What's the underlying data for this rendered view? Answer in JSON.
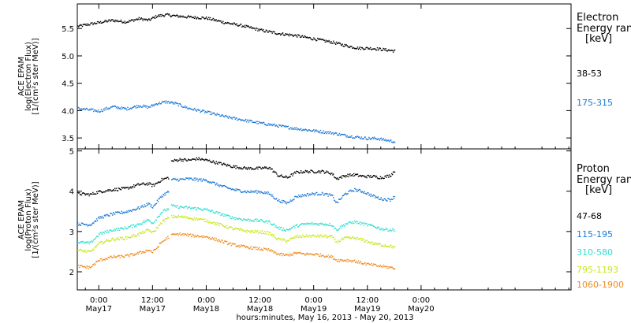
{
  "chart_data": {
    "type": "scatter",
    "x_axis": {
      "label": "hours:minutes, May 16, 2013 - May 20, 2013",
      "range_hours": [
        -4.8,
        105.5
      ],
      "ticks": [
        {
          "h": 0,
          "time": "0:00",
          "date": "May17"
        },
        {
          "h": 12,
          "time": "12:00",
          "date": "May17"
        },
        {
          "h": 24,
          "time": "0:00",
          "date": "May18"
        },
        {
          "h": 36,
          "time": "12:00",
          "date": "May18"
        },
        {
          "h": 48,
          "time": "0:00",
          "date": "May19"
        },
        {
          "h": 60,
          "time": "12:00",
          "date": "May19"
        },
        {
          "h": 72,
          "time": "0:00",
          "date": "May20"
        }
      ]
    },
    "panels": [
      {
        "id": "electron",
        "ylabel_lines": [
          "ACE EPAM",
          "log(Electron Flux)",
          "[1/(cm²s ster MeV)]"
        ],
        "ylim": [
          3.3,
          5.95
        ],
        "yticks": [
          "3.5",
          "4.0",
          "4.5",
          "5.0",
          "5.5"
        ],
        "ytick_values": [
          3.5,
          4.0,
          4.5,
          5.0,
          5.5
        ],
        "legend_title": [
          "Electron",
          "Energy ran",
          "[keV]"
        ],
        "series": [
          {
            "name": "38-53",
            "color": "#000000",
            "x": [
              -4.8,
              0,
              3,
              6,
              9,
              11,
              13,
              15,
              17,
              20,
              24,
              28,
              32,
              36,
              40,
              44,
              48,
              52,
              56,
              58,
              60,
              62,
              64,
              66
            ],
            "y": [
              5.55,
              5.62,
              5.66,
              5.63,
              5.69,
              5.66,
              5.74,
              5.76,
              5.74,
              5.72,
              5.7,
              5.62,
              5.56,
              5.48,
              5.42,
              5.38,
              5.32,
              5.26,
              5.18,
              5.15,
              5.15,
              5.14,
              5.12,
              5.1
            ]
          },
          {
            "name": "175-315",
            "color": "#1a78d6",
            "x": [
              -4.8,
              0,
              3,
              6,
              9,
              11,
              13,
              15,
              17,
              20,
              24,
              28,
              32,
              36,
              40,
              44,
              48,
              52,
              56,
              58,
              60,
              62,
              64,
              66
            ],
            "y": [
              4.05,
              4.0,
              4.08,
              4.04,
              4.1,
              4.07,
              4.14,
              4.17,
              4.14,
              4.05,
              3.98,
              3.9,
              3.84,
              3.78,
              3.73,
              3.68,
              3.64,
              3.6,
              3.54,
              3.52,
              3.5,
              3.5,
              3.47,
              3.44
            ]
          }
        ]
      },
      {
        "id": "proton",
        "ylabel_lines": [
          "ACE EPAM",
          "log(Proton Flux)",
          "[1/(cm²s ster MeV)]"
        ],
        "ylim": [
          1.55,
          5.05
        ],
        "yticks": [
          "2",
          "3",
          "4",
          "5"
        ],
        "ytick_values": [
          2,
          3,
          4,
          5
        ],
        "legend_title": [
          "Proton",
          "Energy ran",
          "[keV]"
        ],
        "series": [
          {
            "name": "47-68",
            "color": "#000000",
            "x": [
              -4.8,
              -2,
              0,
              3,
              6,
              9,
              11,
              12,
              14,
              15.5,
              16,
              18,
              20,
              22,
              24,
              27,
              30,
              33,
              36,
              38,
              40,
              42,
              44,
              46,
              48,
              50,
              52,
              53,
              55,
              57,
              59,
              61,
              63,
              65,
              66
            ],
            "y": [
              3.95,
              3.93,
              4.0,
              4.05,
              4.08,
              4.18,
              4.2,
              4.15,
              4.3,
              4.35,
              4.75,
              4.8,
              4.78,
              4.82,
              4.78,
              4.7,
              4.62,
              4.58,
              4.58,
              4.6,
              4.4,
              4.35,
              4.48,
              4.5,
              4.5,
              4.5,
              4.45,
              4.32,
              4.4,
              4.42,
              4.38,
              4.38,
              4.35,
              4.4,
              4.52
            ]
          },
          {
            "name": "115-195",
            "color": "#1a78d6",
            "x": [
              -4.8,
              -2,
              0,
              3,
              6,
              9,
              11,
              12,
              14,
              15.5,
              16,
              18,
              20,
              22,
              24,
              27,
              30,
              33,
              36,
              38,
              40,
              42,
              44,
              46,
              48,
              50,
              52,
              53,
              55,
              57,
              59,
              61,
              63,
              65,
              66
            ],
            "y": [
              3.2,
              3.18,
              3.35,
              3.45,
              3.5,
              3.6,
              3.7,
              3.62,
              3.9,
              4.0,
              4.3,
              4.3,
              4.32,
              4.3,
              4.28,
              4.15,
              4.05,
              4.0,
              4.0,
              3.95,
              3.78,
              3.72,
              3.88,
              3.92,
              3.95,
              3.95,
              3.9,
              3.72,
              3.95,
              4.05,
              4.0,
              3.9,
              3.82,
              3.8,
              3.88
            ]
          },
          {
            "name": "310-580",
            "color": "#2fe0cf",
            "x": [
              -4.8,
              -2,
              0,
              3,
              6,
              9,
              11,
              12,
              14,
              15.5,
              16,
              18,
              20,
              22,
              24,
              27,
              30,
              33,
              36,
              38,
              40,
              42,
              44,
              46,
              48,
              50,
              52,
              53,
              55,
              57,
              59,
              61,
              63,
              65,
              66
            ],
            "y": [
              2.75,
              2.72,
              2.95,
              3.05,
              3.1,
              3.2,
              3.3,
              3.22,
              3.5,
              3.58,
              3.65,
              3.62,
              3.6,
              3.58,
              3.55,
              3.45,
              3.35,
              3.3,
              3.28,
              3.25,
              3.1,
              3.05,
              3.15,
              3.2,
              3.2,
              3.2,
              3.18,
              3.05,
              3.2,
              3.25,
              3.2,
              3.15,
              3.08,
              3.05,
              3.05
            ]
          },
          {
            "name": "795-1193",
            "color": "#c8e61a",
            "x": [
              -4.8,
              -2,
              0,
              3,
              6,
              9,
              11,
              12,
              14,
              15.5,
              16,
              18,
              20,
              22,
              24,
              27,
              30,
              33,
              36,
              38,
              40,
              42,
              44,
              46,
              48,
              50,
              52,
              53,
              55,
              57,
              59,
              61,
              63,
              65,
              66
            ],
            "y": [
              2.55,
              2.5,
              2.72,
              2.82,
              2.85,
              2.95,
              3.05,
              2.98,
              3.25,
              3.35,
              3.38,
              3.38,
              3.35,
              3.32,
              3.28,
              3.18,
              3.08,
              3.02,
              3.0,
              2.97,
              2.82,
              2.78,
              2.88,
              2.9,
              2.9,
              2.9,
              2.88,
              2.75,
              2.85,
              2.85,
              2.8,
              2.72,
              2.68,
              2.65,
              2.62
            ]
          },
          {
            "name": "1060-1900",
            "color": "#f08c1e",
            "x": [
              -4.8,
              -2,
              0,
              3,
              6,
              9,
              11,
              12,
              14,
              15.5,
              16,
              18,
              20,
              22,
              24,
              27,
              30,
              33,
              36,
              38,
              40,
              42,
              44,
              46,
              48,
              50,
              52,
              53,
              55,
              57,
              59,
              61,
              63,
              65,
              66
            ],
            "y": [
              2.15,
              2.12,
              2.3,
              2.38,
              2.4,
              2.48,
              2.55,
              2.5,
              2.75,
              2.88,
              2.92,
              2.95,
              2.92,
              2.9,
              2.88,
              2.78,
              2.68,
              2.62,
              2.58,
              2.55,
              2.45,
              2.42,
              2.48,
              2.45,
              2.45,
              2.42,
              2.38,
              2.3,
              2.3,
              2.28,
              2.22,
              2.18,
              2.15,
              2.12,
              2.1
            ]
          }
        ]
      }
    ]
  }
}
